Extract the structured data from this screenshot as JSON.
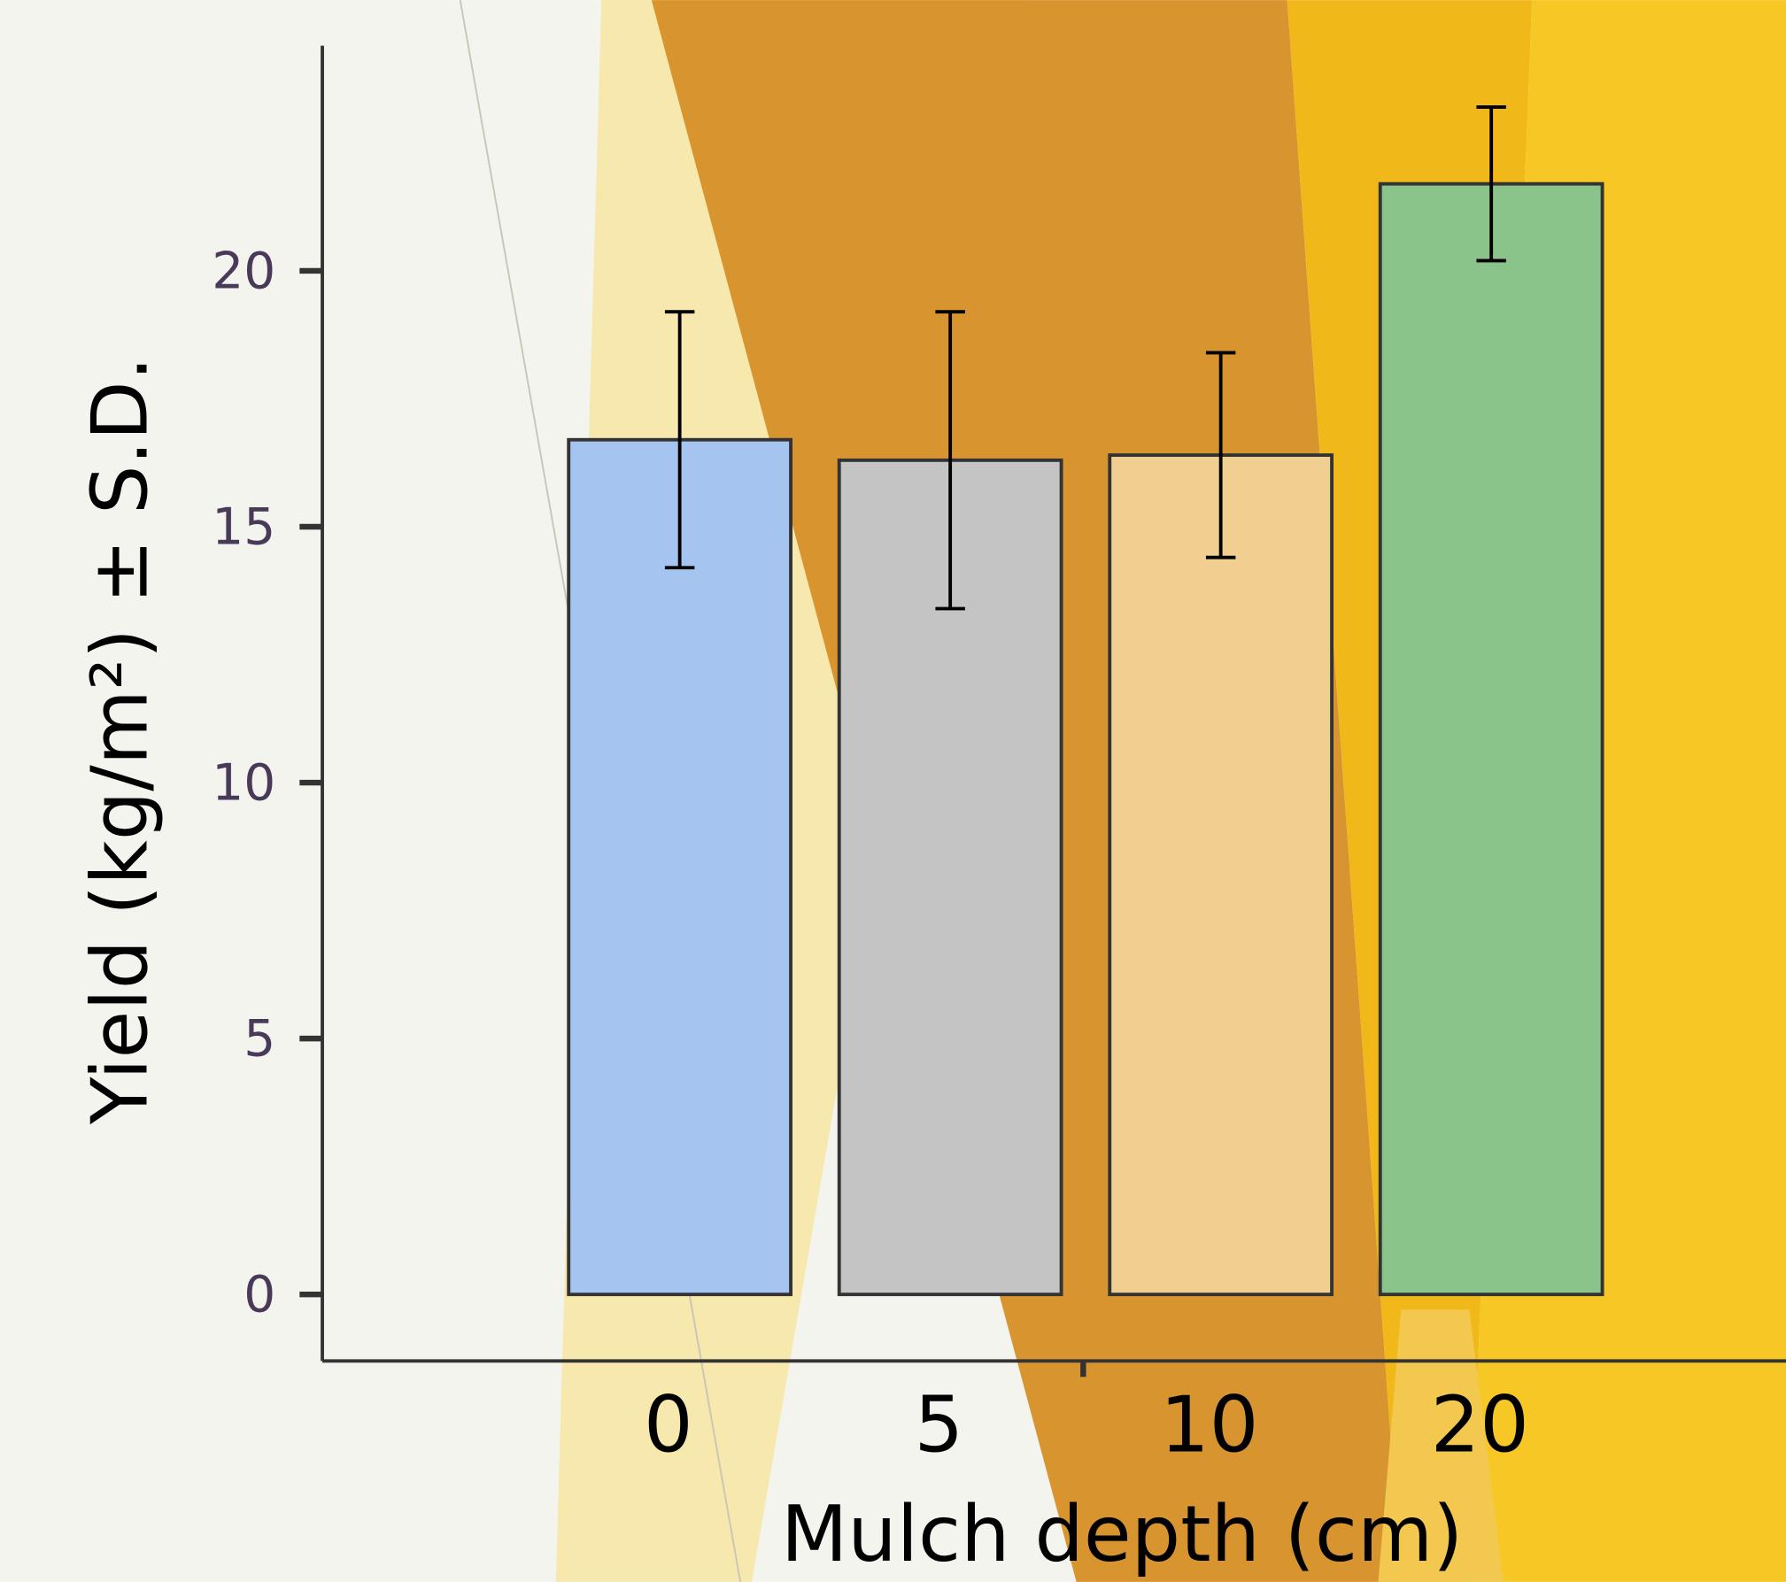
{
  "chart_data": {
    "type": "bar",
    "x_label": "Mulch depth (cm)",
    "y_label": "Yield (kg/m²) ± S.D.",
    "categories": [
      "0",
      "5",
      "10",
      "20"
    ],
    "values": [
      16.7,
      16.3,
      16.4,
      21.7
    ],
    "errors": [
      2.5,
      2.9,
      2.0,
      1.5
    ],
    "colors": [
      "#a6c4f0",
      "#c4c4c4",
      "#f0cf90",
      "#8ac48a"
    ],
    "ylim": [
      -1.3,
      24.4
    ],
    "yticks": [
      0,
      5,
      10,
      15,
      20
    ]
  }
}
